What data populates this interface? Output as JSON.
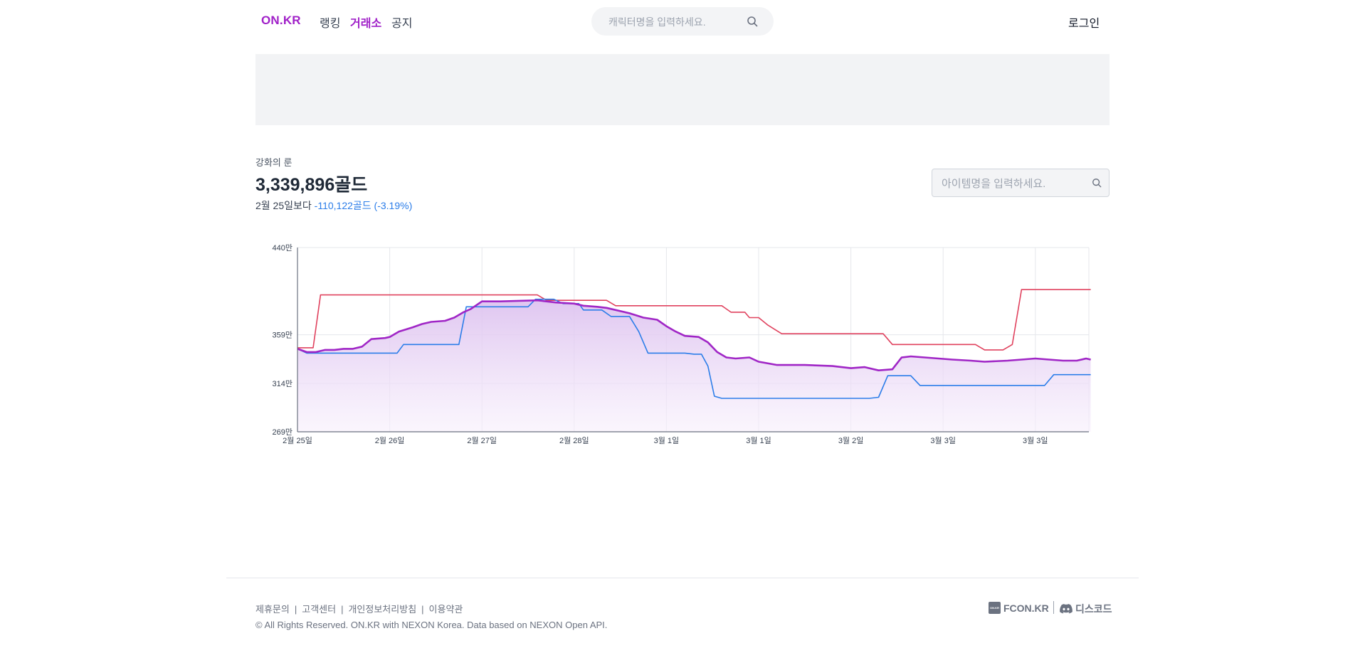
{
  "header": {
    "logo": "ON.KR",
    "nav": [
      {
        "label": "랭킹",
        "active": false
      },
      {
        "label": "거래소",
        "active": true
      },
      {
        "label": "공지",
        "active": false
      }
    ],
    "search_placeholder": "캐릭터명을 입력하세요.",
    "login_label": "로그인"
  },
  "item": {
    "name": "강화의 룬",
    "price": "3,339,896골드",
    "compare_prefix": "2월 25일보다",
    "change": "-110,122골드 (-3.19%)",
    "search_placeholder": "아이템명을 입력하세요."
  },
  "chart_data": {
    "type": "line",
    "x_labels": [
      "2월 25일",
      "2월 26일",
      "2월 27일",
      "2월 28일",
      "3월 1일",
      "3월 1일",
      "3월 2일",
      "3월 3일",
      "3월 3일"
    ],
    "y_ticks": [
      "440만",
      "359만",
      "314만",
      "269만"
    ],
    "ylim": [
      269,
      440
    ],
    "y_unit": "만",
    "grid": true,
    "colors": {
      "max": "#e0425e",
      "avg": "#a026c6",
      "min": "#2b7de9",
      "fill": "#e7d3f3"
    },
    "series": [
      {
        "key": "max",
        "color": "#e0425e",
        "points": [
          [
            0,
            347
          ],
          [
            0.17,
            347
          ],
          [
            0.25,
            396
          ],
          [
            2.6,
            396
          ],
          [
            2.7,
            391
          ],
          [
            3.35,
            391
          ],
          [
            3.45,
            386
          ],
          [
            4.6,
            386
          ],
          [
            4.7,
            380
          ],
          [
            4.85,
            380
          ],
          [
            4.9,
            375
          ],
          [
            5.0,
            375
          ],
          [
            5.1,
            368
          ],
          [
            5.25,
            360
          ],
          [
            6.35,
            360
          ],
          [
            6.45,
            350
          ],
          [
            7.35,
            350
          ],
          [
            7.45,
            345
          ],
          [
            7.65,
            345
          ],
          [
            7.75,
            350
          ],
          [
            7.85,
            401
          ],
          [
            8.6,
            401
          ]
        ]
      },
      {
        "key": "avg",
        "color": "#a026c6",
        "points": [
          [
            0,
            346
          ],
          [
            0.1,
            343
          ],
          [
            0.2,
            343
          ],
          [
            0.3,
            345
          ],
          [
            0.4,
            345
          ],
          [
            0.5,
            346
          ],
          [
            0.6,
            346
          ],
          [
            0.7,
            348
          ],
          [
            0.8,
            355
          ],
          [
            0.95,
            356
          ],
          [
            1.0,
            357
          ],
          [
            1.1,
            362
          ],
          [
            1.25,
            366
          ],
          [
            1.35,
            369
          ],
          [
            1.45,
            371
          ],
          [
            1.6,
            372
          ],
          [
            1.7,
            375
          ],
          [
            1.8,
            380
          ],
          [
            1.88,
            383
          ],
          [
            2.0,
            390
          ],
          [
            2.2,
            390
          ],
          [
            2.6,
            391
          ],
          [
            2.8,
            389
          ],
          [
            3.0,
            388
          ],
          [
            3.1,
            386
          ],
          [
            3.25,
            385
          ],
          [
            3.35,
            384
          ],
          [
            3.45,
            382
          ],
          [
            3.6,
            379
          ],
          [
            3.75,
            375
          ],
          [
            3.9,
            373
          ],
          [
            4.0,
            367
          ],
          [
            4.1,
            362
          ],
          [
            4.2,
            358
          ],
          [
            4.35,
            357
          ],
          [
            4.45,
            352
          ],
          [
            4.55,
            343
          ],
          [
            4.65,
            338
          ],
          [
            4.75,
            337
          ],
          [
            4.9,
            338
          ],
          [
            5.0,
            334
          ],
          [
            5.2,
            331
          ],
          [
            5.5,
            331
          ],
          [
            5.8,
            330
          ],
          [
            6.0,
            328
          ],
          [
            6.15,
            329
          ],
          [
            6.3,
            326
          ],
          [
            6.45,
            327
          ],
          [
            6.55,
            338
          ],
          [
            6.65,
            339
          ],
          [
            6.8,
            338
          ],
          [
            6.95,
            337
          ],
          [
            7.1,
            336
          ],
          [
            7.3,
            335
          ],
          [
            7.45,
            334
          ],
          [
            7.7,
            335
          ],
          [
            7.85,
            336
          ],
          [
            8.0,
            337
          ],
          [
            8.15,
            336
          ],
          [
            8.3,
            335
          ],
          [
            8.45,
            335
          ],
          [
            8.55,
            337
          ],
          [
            8.6,
            336
          ]
        ]
      },
      {
        "key": "min",
        "color": "#2b7de9",
        "points": [
          [
            0,
            346
          ],
          [
            0.1,
            342
          ],
          [
            1.08,
            342
          ],
          [
            1.15,
            350
          ],
          [
            1.75,
            350
          ],
          [
            1.83,
            385
          ],
          [
            2.5,
            385
          ],
          [
            2.58,
            392
          ],
          [
            2.78,
            392
          ],
          [
            2.88,
            388
          ],
          [
            3.05,
            388
          ],
          [
            3.1,
            382
          ],
          [
            3.3,
            382
          ],
          [
            3.4,
            376
          ],
          [
            3.6,
            376
          ],
          [
            3.7,
            362
          ],
          [
            3.8,
            342
          ],
          [
            4.2,
            342
          ],
          [
            4.3,
            341
          ],
          [
            4.38,
            341
          ],
          [
            4.45,
            330
          ],
          [
            4.52,
            302
          ],
          [
            4.6,
            300
          ],
          [
            6.2,
            300
          ],
          [
            6.3,
            301
          ],
          [
            6.4,
            321
          ],
          [
            6.65,
            321
          ],
          [
            6.75,
            312
          ],
          [
            8.1,
            312
          ],
          [
            8.2,
            322
          ],
          [
            8.6,
            322
          ]
        ]
      }
    ]
  },
  "footer": {
    "links": [
      "제휴문의",
      "고객센터",
      "개인정보처리방침",
      "이용약관"
    ],
    "copyright": "© All Rights Reserved. ON.KR with NEXON Korea. Data based on NEXON Open API.",
    "fcon_label": "FCON.KR",
    "fcon_icon_text": "ON.KR",
    "discord_label": "디스코드"
  }
}
